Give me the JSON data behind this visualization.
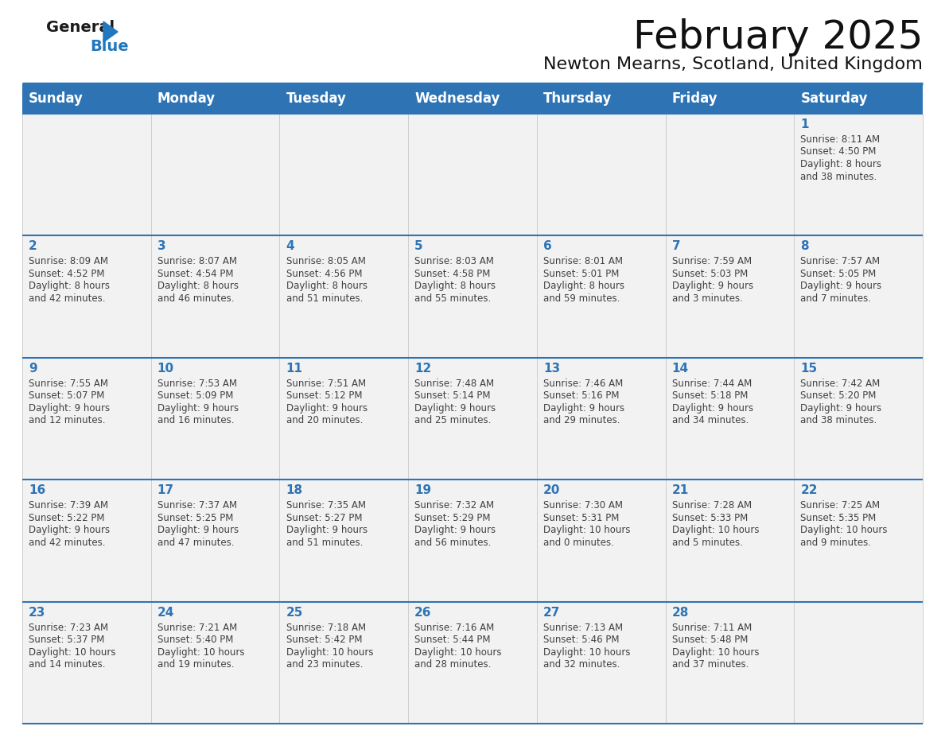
{
  "title": "February 2025",
  "subtitle": "Newton Mearns, Scotland, United Kingdom",
  "header_color": "#2E74B5",
  "header_text_color": "#FFFFFF",
  "cell_bg": "#F2F2F2",
  "border_color": "#2E74B5",
  "day_number_color": "#2E74B5",
  "text_color": "#404040",
  "days_of_week": [
    "Sunday",
    "Monday",
    "Tuesday",
    "Wednesday",
    "Thursday",
    "Friday",
    "Saturday"
  ],
  "weeks": [
    [
      {
        "day": "",
        "sunrise": "",
        "sunset": "",
        "daylight": ""
      },
      {
        "day": "",
        "sunrise": "",
        "sunset": "",
        "daylight": ""
      },
      {
        "day": "",
        "sunrise": "",
        "sunset": "",
        "daylight": ""
      },
      {
        "day": "",
        "sunrise": "",
        "sunset": "",
        "daylight": ""
      },
      {
        "day": "",
        "sunrise": "",
        "sunset": "",
        "daylight": ""
      },
      {
        "day": "",
        "sunrise": "",
        "sunset": "",
        "daylight": ""
      },
      {
        "day": "1",
        "sunrise": "8:11 AM",
        "sunset": "4:50 PM",
        "daylight": "8 hours and 38 minutes."
      }
    ],
    [
      {
        "day": "2",
        "sunrise": "8:09 AM",
        "sunset": "4:52 PM",
        "daylight": "8 hours and 42 minutes."
      },
      {
        "day": "3",
        "sunrise": "8:07 AM",
        "sunset": "4:54 PM",
        "daylight": "8 hours and 46 minutes."
      },
      {
        "day": "4",
        "sunrise": "8:05 AM",
        "sunset": "4:56 PM",
        "daylight": "8 hours and 51 minutes."
      },
      {
        "day": "5",
        "sunrise": "8:03 AM",
        "sunset": "4:58 PM",
        "daylight": "8 hours and 55 minutes."
      },
      {
        "day": "6",
        "sunrise": "8:01 AM",
        "sunset": "5:01 PM",
        "daylight": "8 hours and 59 minutes."
      },
      {
        "day": "7",
        "sunrise": "7:59 AM",
        "sunset": "5:03 PM",
        "daylight": "9 hours and 3 minutes."
      },
      {
        "day": "8",
        "sunrise": "7:57 AM",
        "sunset": "5:05 PM",
        "daylight": "9 hours and 7 minutes."
      }
    ],
    [
      {
        "day": "9",
        "sunrise": "7:55 AM",
        "sunset": "5:07 PM",
        "daylight": "9 hours and 12 minutes."
      },
      {
        "day": "10",
        "sunrise": "7:53 AM",
        "sunset": "5:09 PM",
        "daylight": "9 hours and 16 minutes."
      },
      {
        "day": "11",
        "sunrise": "7:51 AM",
        "sunset": "5:12 PM",
        "daylight": "9 hours and 20 minutes."
      },
      {
        "day": "12",
        "sunrise": "7:48 AM",
        "sunset": "5:14 PM",
        "daylight": "9 hours and 25 minutes."
      },
      {
        "day": "13",
        "sunrise": "7:46 AM",
        "sunset": "5:16 PM",
        "daylight": "9 hours and 29 minutes."
      },
      {
        "day": "14",
        "sunrise": "7:44 AM",
        "sunset": "5:18 PM",
        "daylight": "9 hours and 34 minutes."
      },
      {
        "day": "15",
        "sunrise": "7:42 AM",
        "sunset": "5:20 PM",
        "daylight": "9 hours and 38 minutes."
      }
    ],
    [
      {
        "day": "16",
        "sunrise": "7:39 AM",
        "sunset": "5:22 PM",
        "daylight": "9 hours and 42 minutes."
      },
      {
        "day": "17",
        "sunrise": "7:37 AM",
        "sunset": "5:25 PM",
        "daylight": "9 hours and 47 minutes."
      },
      {
        "day": "18",
        "sunrise": "7:35 AM",
        "sunset": "5:27 PM",
        "daylight": "9 hours and 51 minutes."
      },
      {
        "day": "19",
        "sunrise": "7:32 AM",
        "sunset": "5:29 PM",
        "daylight": "9 hours and 56 minutes."
      },
      {
        "day": "20",
        "sunrise": "7:30 AM",
        "sunset": "5:31 PM",
        "daylight": "10 hours and 0 minutes."
      },
      {
        "day": "21",
        "sunrise": "7:28 AM",
        "sunset": "5:33 PM",
        "daylight": "10 hours and 5 minutes."
      },
      {
        "day": "22",
        "sunrise": "7:25 AM",
        "sunset": "5:35 PM",
        "daylight": "10 hours and 9 minutes."
      }
    ],
    [
      {
        "day": "23",
        "sunrise": "7:23 AM",
        "sunset": "5:37 PM",
        "daylight": "10 hours and 14 minutes."
      },
      {
        "day": "24",
        "sunrise": "7:21 AM",
        "sunset": "5:40 PM",
        "daylight": "10 hours and 19 minutes."
      },
      {
        "day": "25",
        "sunrise": "7:18 AM",
        "sunset": "5:42 PM",
        "daylight": "10 hours and 23 minutes."
      },
      {
        "day": "26",
        "sunrise": "7:16 AM",
        "sunset": "5:44 PM",
        "daylight": "10 hours and 28 minutes."
      },
      {
        "day": "27",
        "sunrise": "7:13 AM",
        "sunset": "5:46 PM",
        "daylight": "10 hours and 32 minutes."
      },
      {
        "day": "28",
        "sunrise": "7:11 AM",
        "sunset": "5:48 PM",
        "daylight": "10 hours and 37 minutes."
      },
      {
        "day": "",
        "sunrise": "",
        "sunset": "",
        "daylight": ""
      }
    ]
  ],
  "logo_color_general": "#1a1a1a",
  "logo_color_blue": "#2178BE",
  "logo_triangle_color": "#2178BE",
  "title_fontsize": 36,
  "subtitle_fontsize": 16,
  "header_fontsize": 12,
  "day_num_fontsize": 11,
  "cell_text_fontsize": 8.5
}
